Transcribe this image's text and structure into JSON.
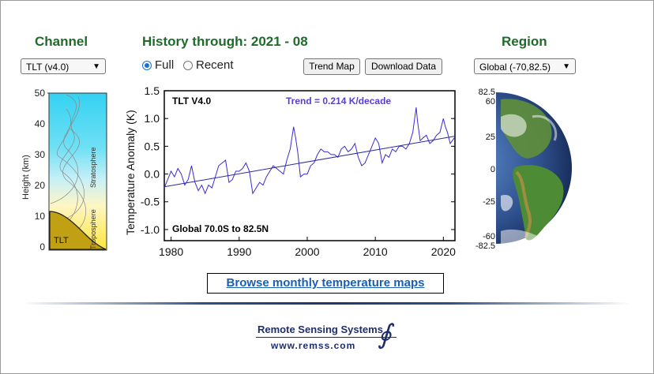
{
  "headings": {
    "channel": "Channel",
    "history": "History through: 2021 - 08",
    "region": "Region"
  },
  "channel_select": {
    "value": "TLT (v4.0)"
  },
  "region_select": {
    "value": "Global (-70,82.5)"
  },
  "history_mode": {
    "full_label": "Full",
    "recent_label": "Recent",
    "selected": "Full"
  },
  "buttons": {
    "trend_map": "Trend Map",
    "download_data": "Download Data"
  },
  "browse_link": "Browse monthly temperature maps",
  "footer": {
    "org": "Remote Sensing Systems",
    "url": "www.remss.com",
    "logo_glyph": "∮"
  },
  "weighting_panel": {
    "y_ticks": [
      "50",
      "40",
      "30",
      "20",
      "10",
      "0"
    ],
    "ylabel": "Height  (km)",
    "stratosphere_label": "Stratosphere",
    "troposphere_label": "Troposphere",
    "channel_label": "TLT"
  },
  "globe_panel": {
    "lat_labels": [
      "82.5",
      "60",
      "25",
      "0",
      "-25",
      "-60",
      "-82.5"
    ]
  },
  "colors": {
    "heading": "#1e6b2a",
    "series": "#3a2bd6",
    "trend_text": "#5b3bd6",
    "link": "#1a5fb4"
  },
  "chart_data": {
    "type": "line",
    "title": "TLT V4.0",
    "trend_label": "Trend =  0.214 K/decade",
    "region_label": "Global  70.0S to  82.5N",
    "xlabel": "",
    "ylabel": "Temperature Anomaly (K)",
    "xlim": [
      1979,
      2021.7
    ],
    "ylim": [
      -1.2,
      1.5
    ],
    "x_ticks": [
      1980,
      1990,
      2000,
      2010,
      2020
    ],
    "y_ticks": [
      "1.5",
      "1.0",
      "0.5",
      "0.0",
      "-0.5",
      "-1.0"
    ],
    "y_tick_values": [
      1.5,
      1.0,
      0.5,
      0.0,
      -0.5,
      -1.0
    ],
    "grid": false,
    "series": [
      {
        "values_note_free": true,
        "x": [
          1979.0,
          1979.5,
          1980.0,
          1980.5,
          1981.0,
          1981.5,
          1982.0,
          1982.5,
          1983.0,
          1983.5,
          1984.0,
          1984.5,
          1985.0,
          1985.5,
          1986.0,
          1986.5,
          1987.0,
          1987.5,
          1988.0,
          1988.5,
          1989.0,
          1989.5,
          1990.0,
          1990.5,
          1991.0,
          1991.5,
          1992.0,
          1992.5,
          1993.0,
          1993.5,
          1994.0,
          1994.5,
          1995.0,
          1995.5,
          1996.0,
          1996.5,
          1997.0,
          1997.5,
          1998.0,
          1998.3,
          1998.6,
          1999.0,
          1999.5,
          2000.0,
          2000.5,
          2001.0,
          2001.5,
          2002.0,
          2002.5,
          2003.0,
          2003.5,
          2004.0,
          2004.5,
          2005.0,
          2005.5,
          2006.0,
          2006.5,
          2007.0,
          2007.5,
          2008.0,
          2008.5,
          2009.0,
          2009.5,
          2010.0,
          2010.5,
          2011.0,
          2011.5,
          2012.0,
          2012.5,
          2013.0,
          2013.5,
          2014.0,
          2014.5,
          2015.0,
          2015.5,
          2016.0,
          2016.2,
          2016.6,
          2017.0,
          2017.5,
          2018.0,
          2018.5,
          2019.0,
          2019.5,
          2020.0,
          2020.3,
          2020.6,
          2021.0,
          2021.3,
          2021.6
        ],
        "y": [
          -0.25,
          -0.1,
          0.05,
          -0.05,
          0.1,
          0.0,
          -0.2,
          -0.1,
          0.15,
          -0.15,
          -0.3,
          -0.2,
          -0.35,
          -0.2,
          -0.25,
          -0.05,
          0.15,
          0.2,
          0.25,
          -0.15,
          -0.1,
          0.05,
          0.05,
          0.1,
          0.2,
          0.05,
          -0.35,
          -0.25,
          -0.15,
          -0.2,
          -0.05,
          0.05,
          0.15,
          0.1,
          0.05,
          0.0,
          0.25,
          0.45,
          0.85,
          0.65,
          0.4,
          -0.05,
          0.0,
          0.0,
          0.15,
          0.2,
          0.35,
          0.45,
          0.4,
          0.4,
          0.35,
          0.35,
          0.3,
          0.45,
          0.5,
          0.4,
          0.45,
          0.55,
          0.3,
          0.15,
          0.2,
          0.35,
          0.5,
          0.65,
          0.55,
          0.2,
          0.35,
          0.3,
          0.45,
          0.4,
          0.5,
          0.5,
          0.45,
          0.55,
          0.75,
          1.2,
          0.95,
          0.6,
          0.65,
          0.7,
          0.55,
          0.6,
          0.7,
          0.75,
          1.0,
          0.85,
          0.75,
          0.55,
          0.6,
          0.65
        ]
      }
    ],
    "trend_line": {
      "x": [
        1979.0,
        2021.6
      ],
      "y": [
        -0.23,
        0.68
      ]
    }
  }
}
